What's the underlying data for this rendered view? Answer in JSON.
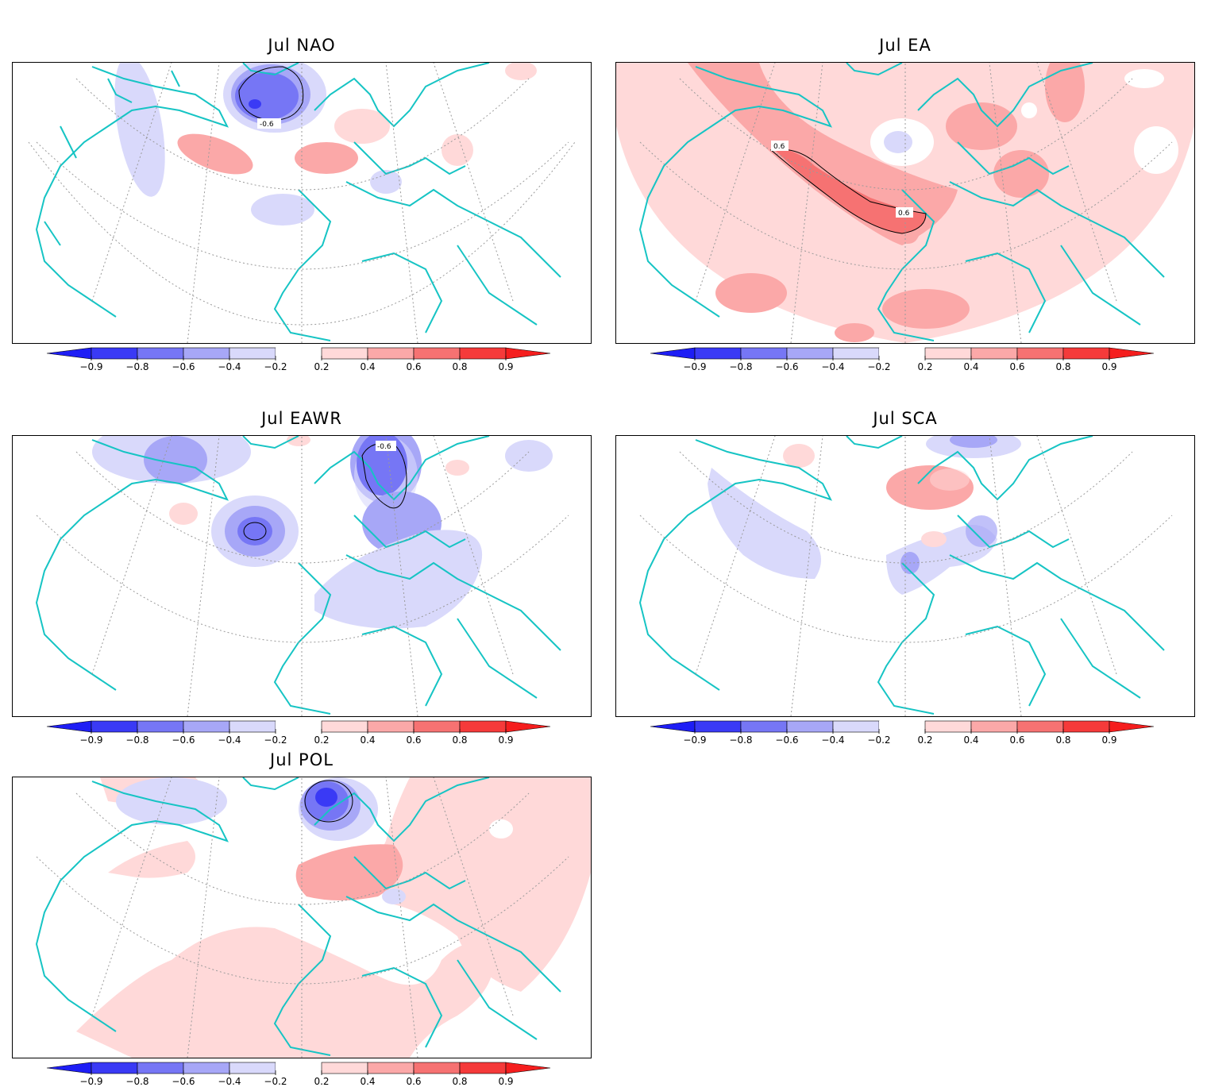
{
  "legend": {
    "colors": [
      "#3a3af5",
      "#7676f5",
      "#a7a7f7",
      "#d9d9fb",
      "#ffffff",
      "#ffd9d9",
      "#fba8a8",
      "#f67272",
      "#f53a3a"
    ],
    "ticks": [
      "-0.9",
      "-0.8",
      "-0.6",
      "-0.4",
      "-0.2",
      "0.2",
      "0.4",
      "0.6",
      "0.8",
      "0.9"
    ]
  },
  "colors": {
    "coastline": "#16c4c4",
    "frame": "#000000",
    "graticule": "#9a9a9a",
    "contour": "#000000"
  },
  "panels": [
    {
      "id": "nao",
      "title": "Jul  NAO",
      "contour_labels": [
        "-0.6"
      ]
    },
    {
      "id": "ea",
      "title": "Jul  EA",
      "contour_labels": [
        "0.6",
        "0.6"
      ]
    },
    {
      "id": "eawr",
      "title": "Jul  EAWR",
      "contour_labels": [
        "-0.6"
      ]
    },
    {
      "id": "sca",
      "title": "Jul  SCA",
      "contour_labels": []
    },
    {
      "id": "pol",
      "title": "Jul  POL",
      "contour_labels": []
    }
  ]
}
